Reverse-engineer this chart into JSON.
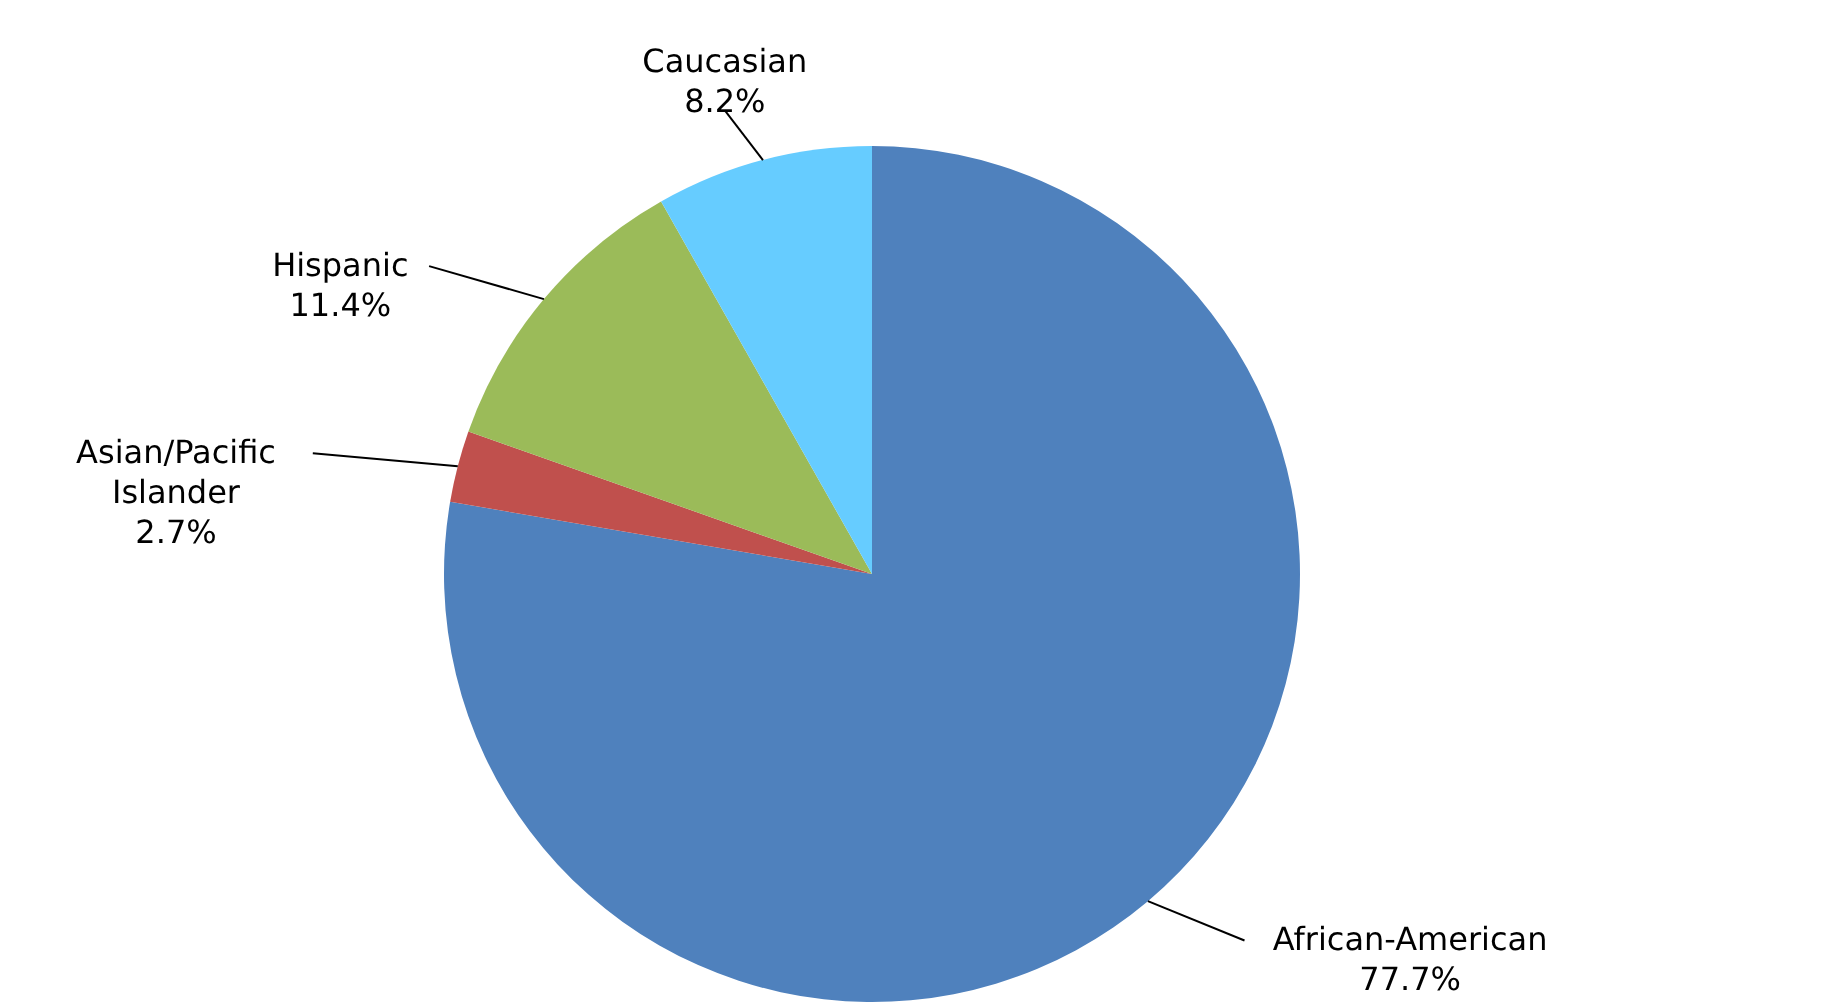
{
  "chart_data": {
    "type": "pie",
    "categories": [
      "African-American",
      "Asian/Pacific Islander",
      "Hispanic",
      "Caucasian"
    ],
    "values": [
      77.7,
      2.7,
      11.4,
      8.2
    ],
    "colors": [
      "#4f81bd",
      "#c0504d",
      "#9bbb59",
      "#66ccff"
    ],
    "value_labels": [
      "77.7%",
      "2.7%",
      "11.4%",
      "8.2%"
    ]
  }
}
